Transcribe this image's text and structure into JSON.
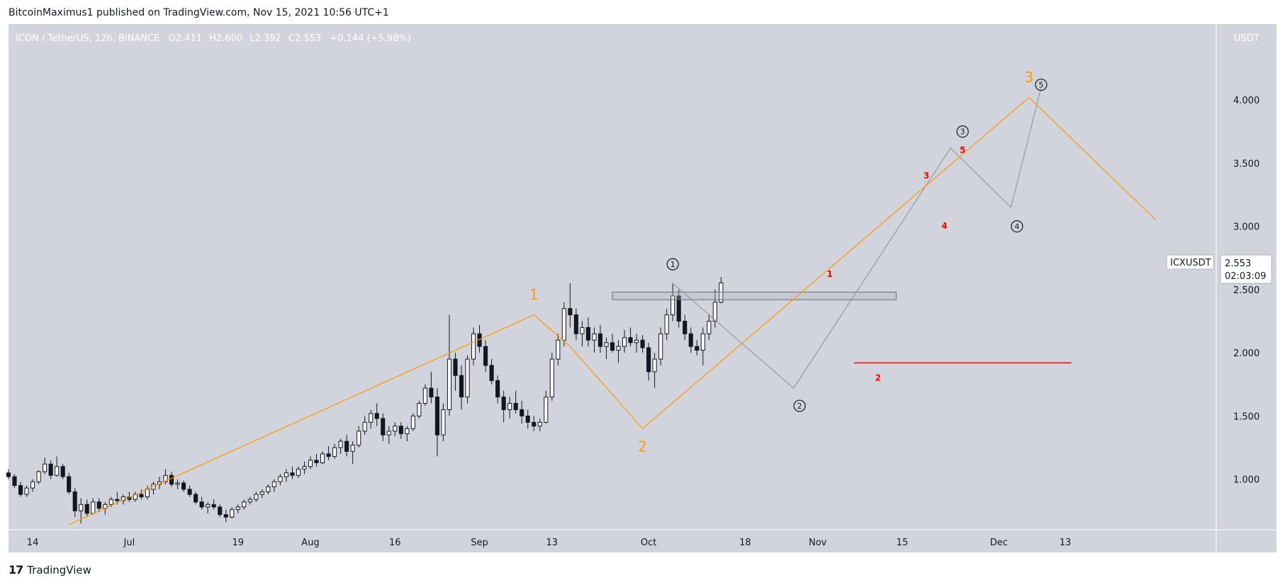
{
  "header": {
    "published": "BitcoinMaximus1 published on TradingView.com, Nov 15, 2021 10:56 UTC+1"
  },
  "footer": {
    "brand": "TradingView",
    "logo": "17"
  },
  "chart_data": {
    "type": "candlestick",
    "symbol_line": "ICON / TetherUS, 12h, BINANCE",
    "ohlc": {
      "o_label": "O",
      "o": "2.411",
      "h_label": "H",
      "h": "2.600",
      "l_label": "L",
      "l": "2.392",
      "c_label": "C",
      "c": "2.553",
      "change": "+0.144 (+5.98%)"
    },
    "currency": "USDT",
    "ticker": "ICXUSDT",
    "last_price": "2.553",
    "countdown": "02:03:09",
    "y_ticks": [
      "1.000",
      "1.500",
      "2.000",
      "2.500",
      "3.000",
      "3.500",
      "4.000"
    ],
    "y_range": [
      0.6,
      4.6
    ],
    "x_range": [
      0,
      200
    ],
    "x_ticks": [
      {
        "label": "14",
        "x": 4
      },
      {
        "label": "Jul",
        "x": 20
      },
      {
        "label": "19",
        "x": 38
      },
      {
        "label": "Aug",
        "x": 50
      },
      {
        "label": "16",
        "x": 64
      },
      {
        "label": "Sep",
        "x": 78
      },
      {
        "label": "13",
        "x": 90
      },
      {
        "label": "Oct",
        "x": 106
      },
      {
        "label": "18",
        "x": 122
      },
      {
        "label": "Nov",
        "x": 134
      },
      {
        "label": "15",
        "x": 148
      },
      {
        "label": "Dec",
        "x": 164
      },
      {
        "label": "13",
        "x": 175
      }
    ],
    "candles": [
      [
        0,
        1.05,
        1.08,
        1.0,
        1.02
      ],
      [
        1,
        1.02,
        1.04,
        0.93,
        0.95
      ],
      [
        2,
        0.95,
        0.98,
        0.86,
        0.88
      ],
      [
        3,
        0.88,
        0.95,
        0.86,
        0.93
      ],
      [
        4,
        0.93,
        1.0,
        0.9,
        0.98
      ],
      [
        5,
        0.98,
        1.07,
        0.96,
        1.06
      ],
      [
        6,
        1.06,
        1.17,
        1.04,
        1.12
      ],
      [
        7,
        1.12,
        1.15,
        1.0,
        1.03
      ],
      [
        8,
        1.03,
        1.18,
        1.02,
        1.1
      ],
      [
        9,
        1.1,
        1.12,
        1.0,
        1.02
      ],
      [
        10,
        1.02,
        1.05,
        0.88,
        0.9
      ],
      [
        11,
        0.9,
        0.93,
        0.7,
        0.75
      ],
      [
        12,
        0.75,
        0.85,
        0.65,
        0.8
      ],
      [
        13,
        0.8,
        0.84,
        0.7,
        0.73
      ],
      [
        14,
        0.73,
        0.85,
        0.72,
        0.82
      ],
      [
        15,
        0.82,
        0.85,
        0.74,
        0.77
      ],
      [
        16,
        0.77,
        0.82,
        0.72,
        0.8
      ],
      [
        17,
        0.8,
        0.86,
        0.78,
        0.84
      ],
      [
        18,
        0.84,
        0.9,
        0.8,
        0.83
      ],
      [
        19,
        0.83,
        0.88,
        0.8,
        0.86
      ],
      [
        20,
        0.86,
        0.9,
        0.82,
        0.84
      ],
      [
        21,
        0.84,
        0.9,
        0.82,
        0.88
      ],
      [
        22,
        0.88,
        0.92,
        0.84,
        0.86
      ],
      [
        23,
        0.86,
        0.95,
        0.84,
        0.92
      ],
      [
        24,
        0.92,
        0.98,
        0.88,
        0.96
      ],
      [
        25,
        0.96,
        1.02,
        0.92,
        0.98
      ],
      [
        26,
        0.98,
        1.08,
        0.96,
        1.03
      ],
      [
        27,
        1.03,
        1.06,
        0.94,
        0.96
      ],
      [
        28,
        0.96,
        1.0,
        0.92,
        0.97
      ],
      [
        29,
        0.97,
        0.99,
        0.9,
        0.92
      ],
      [
        30,
        0.92,
        0.95,
        0.86,
        0.88
      ],
      [
        31,
        0.88,
        0.9,
        0.8,
        0.82
      ],
      [
        32,
        0.82,
        0.86,
        0.76,
        0.78
      ],
      [
        33,
        0.78,
        0.82,
        0.73,
        0.8
      ],
      [
        34,
        0.8,
        0.84,
        0.76,
        0.78
      ],
      [
        35,
        0.78,
        0.8,
        0.7,
        0.72
      ],
      [
        36,
        0.72,
        0.76,
        0.66,
        0.7
      ],
      [
        37,
        0.7,
        0.78,
        0.69,
        0.76
      ],
      [
        38,
        0.76,
        0.8,
        0.73,
        0.78
      ],
      [
        39,
        0.78,
        0.84,
        0.76,
        0.82
      ],
      [
        40,
        0.82,
        0.86,
        0.8,
        0.84
      ],
      [
        41,
        0.84,
        0.9,
        0.82,
        0.88
      ],
      [
        42,
        0.88,
        0.92,
        0.85,
        0.9
      ],
      [
        43,
        0.9,
        0.96,
        0.88,
        0.94
      ],
      [
        44,
        0.94,
        1.0,
        0.9,
        0.98
      ],
      [
        45,
        0.98,
        1.04,
        0.95,
        1.02
      ],
      [
        46,
        1.02,
        1.08,
        0.98,
        1.05
      ],
      [
        47,
        1.05,
        1.1,
        1.0,
        1.03
      ],
      [
        48,
        1.03,
        1.1,
        1.01,
        1.08
      ],
      [
        49,
        1.08,
        1.14,
        1.04,
        1.1
      ],
      [
        50,
        1.1,
        1.18,
        1.08,
        1.15
      ],
      [
        51,
        1.15,
        1.2,
        1.1,
        1.13
      ],
      [
        52,
        1.13,
        1.22,
        1.12,
        1.2
      ],
      [
        53,
        1.2,
        1.26,
        1.15,
        1.18
      ],
      [
        54,
        1.18,
        1.28,
        1.16,
        1.25
      ],
      [
        55,
        1.25,
        1.32,
        1.2,
        1.3
      ],
      [
        56,
        1.3,
        1.35,
        1.18,
        1.22
      ],
      [
        57,
        1.22,
        1.3,
        1.12,
        1.27
      ],
      [
        58,
        1.27,
        1.42,
        1.25,
        1.38
      ],
      [
        59,
        1.38,
        1.5,
        1.35,
        1.45
      ],
      [
        60,
        1.45,
        1.55,
        1.4,
        1.52
      ],
      [
        61,
        1.52,
        1.6,
        1.42,
        1.48
      ],
      [
        62,
        1.48,
        1.52,
        1.3,
        1.35
      ],
      [
        63,
        1.35,
        1.42,
        1.28,
        1.38
      ],
      [
        64,
        1.38,
        1.45,
        1.34,
        1.42
      ],
      [
        65,
        1.42,
        1.45,
        1.32,
        1.36
      ],
      [
        66,
        1.36,
        1.42,
        1.3,
        1.4
      ],
      [
        67,
        1.4,
        1.52,
        1.38,
        1.5
      ],
      [
        68,
        1.5,
        1.62,
        1.48,
        1.6
      ],
      [
        69,
        1.6,
        1.75,
        1.58,
        1.72
      ],
      [
        70,
        1.72,
        1.85,
        1.6,
        1.65
      ],
      [
        71,
        1.65,
        1.72,
        1.18,
        1.35
      ],
      [
        72,
        1.35,
        1.6,
        1.3,
        1.55
      ],
      [
        73,
        1.55,
        2.3,
        1.5,
        1.95
      ],
      [
        74,
        1.95,
        2.0,
        1.7,
        1.82
      ],
      [
        75,
        1.82,
        1.9,
        1.55,
        1.65
      ],
      [
        76,
        1.65,
        1.98,
        1.6,
        1.95
      ],
      [
        77,
        1.95,
        2.2,
        1.9,
        2.15
      ],
      [
        78,
        2.15,
        2.22,
        2.0,
        2.05
      ],
      [
        79,
        2.05,
        2.1,
        1.85,
        1.9
      ],
      [
        80,
        1.9,
        1.95,
        1.75,
        1.78
      ],
      [
        81,
        1.78,
        1.82,
        1.6,
        1.65
      ],
      [
        82,
        1.65,
        1.7,
        1.45,
        1.55
      ],
      [
        83,
        1.55,
        1.65,
        1.48,
        1.6
      ],
      [
        84,
        1.6,
        1.7,
        1.52,
        1.55
      ],
      [
        85,
        1.55,
        1.62,
        1.44,
        1.5
      ],
      [
        86,
        1.5,
        1.55,
        1.4,
        1.45
      ],
      [
        87,
        1.45,
        1.5,
        1.38,
        1.42
      ],
      [
        88,
        1.42,
        1.48,
        1.38,
        1.45
      ],
      [
        89,
        1.45,
        1.7,
        1.44,
        1.65
      ],
      [
        90,
        1.65,
        2.0,
        1.62,
        1.95
      ],
      [
        91,
        1.95,
        2.15,
        1.9,
        2.1
      ],
      [
        92,
        2.1,
        2.4,
        2.05,
        2.35
      ],
      [
        93,
        2.35,
        2.55,
        2.2,
        2.3
      ],
      [
        94,
        2.3,
        2.35,
        2.1,
        2.15
      ],
      [
        95,
        2.15,
        2.25,
        2.05,
        2.2
      ],
      [
        96,
        2.2,
        2.28,
        2.05,
        2.1
      ],
      [
        97,
        2.1,
        2.2,
        2.0,
        2.15
      ],
      [
        98,
        2.15,
        2.22,
        2.0,
        2.05
      ],
      [
        99,
        2.05,
        2.12,
        1.95,
        2.08
      ],
      [
        100,
        2.08,
        2.15,
        2.0,
        2.02
      ],
      [
        101,
        2.02,
        2.1,
        1.92,
        2.05
      ],
      [
        102,
        2.05,
        2.18,
        2.0,
        2.12
      ],
      [
        103,
        2.12,
        2.2,
        2.05,
        2.08
      ],
      [
        104,
        2.08,
        2.15,
        2.0,
        2.1
      ],
      [
        105,
        2.1,
        2.14,
        2.0,
        2.04
      ],
      [
        106,
        2.04,
        2.08,
        1.78,
        1.85
      ],
      [
        107,
        1.85,
        2.0,
        1.72,
        1.95
      ],
      [
        108,
        1.95,
        2.2,
        1.9,
        2.15
      ],
      [
        109,
        2.15,
        2.35,
        2.1,
        2.3
      ],
      [
        110,
        2.3,
        2.55,
        2.25,
        2.45
      ],
      [
        111,
        2.45,
        2.5,
        2.2,
        2.25
      ],
      [
        112,
        2.25,
        2.3,
        2.1,
        2.15
      ],
      [
        113,
        2.15,
        2.2,
        2.0,
        2.05
      ],
      [
        114,
        2.05,
        2.1,
        1.98,
        2.02
      ],
      [
        115,
        2.02,
        2.2,
        1.9,
        2.15
      ],
      [
        116,
        2.15,
        2.3,
        2.1,
        2.25
      ],
      [
        117,
        2.25,
        2.5,
        2.2,
        2.4
      ],
      [
        118,
        2.4,
        2.6,
        2.39,
        2.553
      ]
    ],
    "resistance_box": {
      "x0": 100,
      "x1": 147,
      "y0": 2.42,
      "y1": 2.48
    },
    "support_line": {
      "x0": 140,
      "x1": 176,
      "y": 1.92
    },
    "orange_path": [
      [
        10,
        0.64
      ],
      [
        87,
        2.3
      ],
      [
        93,
        2.05
      ],
      [
        105,
        1.4
      ],
      [
        169,
        4.02
      ],
      [
        190,
        3.05
      ]
    ],
    "gray_path": [
      [
        110,
        2.55
      ],
      [
        130,
        1.72
      ],
      [
        156,
        3.62
      ],
      [
        166,
        3.15
      ],
      [
        171,
        4.1
      ]
    ],
    "labels": [
      {
        "text": "1",
        "x": 87,
        "y": 2.42,
        "color": "#ff9800",
        "size": 20
      },
      {
        "text": "2",
        "x": 105,
        "y": 1.22,
        "color": "#ff9800",
        "size": 20
      },
      {
        "text": "3",
        "x": 169,
        "y": 4.14,
        "color": "#ff9800",
        "size": 20
      },
      {
        "text": "1",
        "x": 136,
        "y": 2.6,
        "color": "#ff0000",
        "size": 12
      },
      {
        "text": "2",
        "x": 144,
        "y": 1.78,
        "color": "#ff0000",
        "size": 12
      },
      {
        "text": "3",
        "x": 152,
        "y": 3.38,
        "color": "#ff0000",
        "size": 12
      },
      {
        "text": "4",
        "x": 155,
        "y": 2.98,
        "color": "#ff0000",
        "size": 12
      },
      {
        "text": "5",
        "x": 158,
        "y": 3.58,
        "color": "#ff0000",
        "size": 12
      }
    ],
    "circled_labels": [
      {
        "text": "1",
        "x": 110,
        "y": 2.7
      },
      {
        "text": "2",
        "x": 131,
        "y": 1.58
      },
      {
        "text": "3",
        "x": 158,
        "y": 3.75
      },
      {
        "text": "4",
        "x": 167,
        "y": 3.0
      },
      {
        "text": "5",
        "x": 171,
        "y": 4.12
      }
    ],
    "colors": {
      "background": "#d1d4dc",
      "candle": "#131722",
      "orange": "#ff9800",
      "gray_line": "#9598a1",
      "support": "#ff0000",
      "box": "#b2b5be"
    }
  }
}
